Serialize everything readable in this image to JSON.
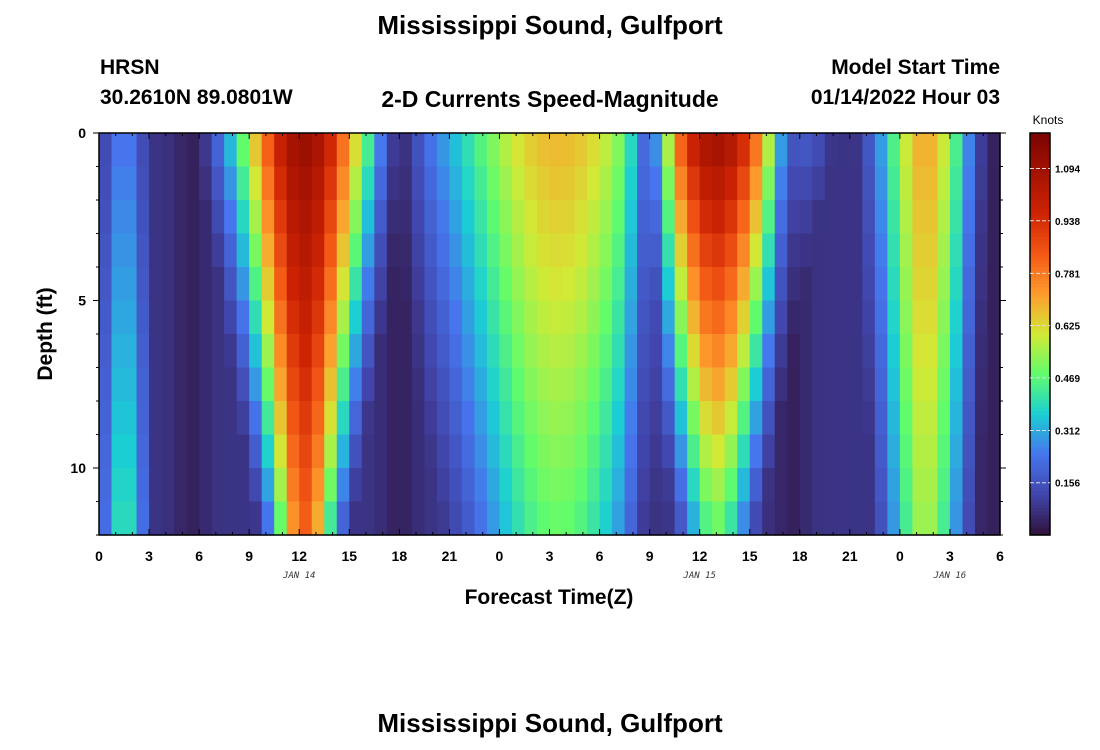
{
  "header": {
    "title": "Mississippi Sound, Gulfport",
    "model_name": "HRSN",
    "location": "30.2610N  89.0801W",
    "subtitle": "2-D Currents Speed-Magnitude",
    "start_label": "Model Start Time",
    "start_value": "01/14/2022 Hour 03"
  },
  "footer": {
    "repeated_title": "Mississippi Sound, Gulfport"
  },
  "chart_data": {
    "type": "heatmap",
    "title": "2-D Currents Speed-Magnitude",
    "xlabel": "Forecast Time(Z)",
    "ylabel": "Depth (ft)",
    "x_tick_labels": [
      "0",
      "3",
      "6",
      "9",
      "12",
      "15",
      "18",
      "21",
      "0",
      "3",
      "6",
      "9",
      "12",
      "15",
      "18",
      "21",
      "0",
      "3",
      "6"
    ],
    "x_range_hours": [
      0,
      54
    ],
    "date_labels": [
      {
        "hour": 12,
        "text": "JAN 14"
      },
      {
        "hour": 36,
        "text": "JAN 15"
      },
      {
        "hour": 51,
        "text": "JAN 16"
      }
    ],
    "y_ticks": [
      0,
      5,
      10
    ],
    "y_range_ft": [
      0,
      12
    ],
    "colorbar": {
      "unit": "Knots",
      "min": 0,
      "max": 1.2,
      "ticks": [
        "1.094",
        "0.938",
        "0.781",
        "0.625",
        "0.469",
        "0.312",
        "0.156"
      ],
      "tick_values": [
        1.094,
        0.938,
        0.781,
        0.625,
        0.469,
        0.312,
        0.156
      ]
    },
    "hour_step": 0.75,
    "depth_levels_ft": [
      0.5,
      1.5,
      2.5,
      3.5,
      4.5,
      5.5,
      6.5,
      7.5,
      8.5,
      9.5,
      10.5,
      11.5
    ],
    "speed_model": {
      "description_of_values": "current speed (knots) by forecast hour and depth",
      "events": [
        {
          "center_hour": 1.5,
          "half_width_hours": 1.8,
          "surface_kn": 0.25,
          "bottom_kn": 0.42,
          "width_taper": 0.0
        },
        {
          "center_hour": 12.3,
          "half_width_hours": 5.2,
          "surface_kn": 1.12,
          "bottom_kn": 0.82,
          "width_taper": 0.55
        },
        {
          "center_hour": 27.5,
          "half_width_hours": 9.5,
          "surface_kn": 0.68,
          "bottom_kn": 0.48,
          "width_taper": 0.3
        },
        {
          "center_hour": 37.0,
          "half_width_hours": 5.6,
          "surface_kn": 1.1,
          "bottom_kn": 0.47,
          "width_taper": 0.55
        },
        {
          "center_hour": 49.5,
          "half_width_hours": 3.6,
          "surface_kn": 0.7,
          "bottom_kn": 0.55,
          "width_taper": 0.2
        }
      ],
      "slack_hours": [
        5.5,
        18.0,
        33.0,
        41.5,
        53.5
      ]
    }
  }
}
